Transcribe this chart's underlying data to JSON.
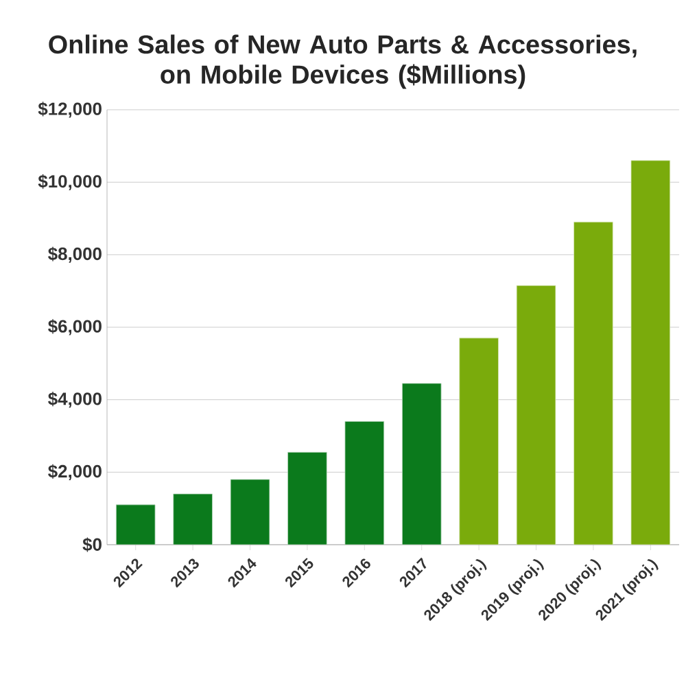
{
  "chart_data": {
    "type": "bar",
    "title": "Online Sales of New Auto Parts & Accessories,\non Mobile Devices ($Millions)",
    "categories": [
      "2012",
      "2013",
      "2014",
      "2015",
      "2016",
      "2017",
      "2018 (proj.)",
      "2019 (proj.)",
      "2020 (proj.)",
      "2021 (proj.)"
    ],
    "values": [
      1100,
      1400,
      1800,
      2550,
      3400,
      4450,
      5700,
      7150,
      8900,
      10600
    ],
    "colors": [
      "#0b7a1c",
      "#0b7a1c",
      "#0b7a1c",
      "#0b7a1c",
      "#0b7a1c",
      "#0b7a1c",
      "#7aab0c",
      "#7aab0c",
      "#7aab0c",
      "#7aab0c"
    ],
    "ylim": [
      0,
      12000
    ],
    "yticks": [
      {
        "value": 0,
        "label": "$0"
      },
      {
        "value": 2000,
        "label": "$2,000"
      },
      {
        "value": 4000,
        "label": "$4,000"
      },
      {
        "value": 6000,
        "label": "$6,000"
      },
      {
        "value": 8000,
        "label": "$8,000"
      },
      {
        "value": 10000,
        "label": "$10,000"
      },
      {
        "value": 12000,
        "label": "$12,000"
      }
    ],
    "grid": "y"
  }
}
